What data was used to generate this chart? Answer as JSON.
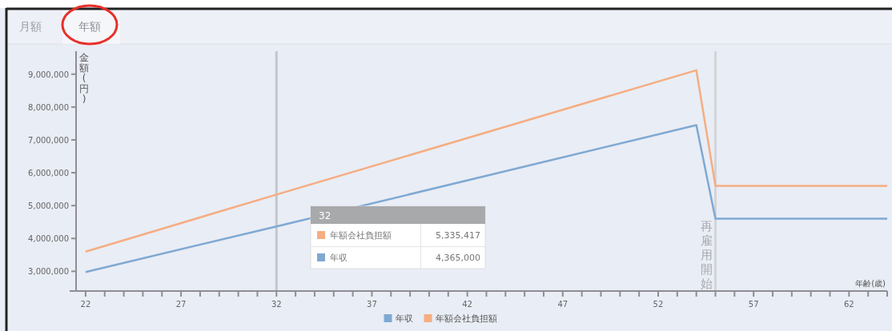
{
  "chart_data": {
    "type": "line",
    "xlabel": "年齢(歳)",
    "ylabel": "金額(円)",
    "xlim": [
      21.5,
      64
    ],
    "ylim": [
      2400000,
      9700000
    ],
    "xticks": [
      22,
      {
        "value": 23,
        "label": null
      },
      {
        "value": 24,
        "label": null
      },
      {
        "value": 25,
        "label": null
      },
      {
        "value": 26,
        "label": null
      },
      27,
      {
        "value": 28,
        "label": null
      },
      {
        "value": 29,
        "label": null
      },
      {
        "value": 30,
        "label": null
      },
      {
        "value": 31,
        "label": null
      },
      32,
      {
        "value": 33,
        "label": null
      },
      {
        "value": 34,
        "label": null
      },
      {
        "value": 35,
        "label": null
      },
      {
        "value": 36,
        "label": null
      },
      37,
      {
        "value": 38,
        "label": null
      },
      {
        "value": 39,
        "label": null
      },
      {
        "value": 40,
        "label": null
      },
      {
        "value": 41,
        "label": null
      },
      42,
      {
        "value": 43,
        "label": null
      },
      {
        "value": 44,
        "label": null
      },
      {
        "value": 45,
        "label": null
      },
      {
        "value": 46,
        "label": null
      },
      47,
      {
        "value": 48,
        "label": null
      },
      {
        "value": 49,
        "label": null
      },
      {
        "value": 50,
        "label": null
      },
      {
        "value": 51,
        "label": null
      },
      52,
      {
        "value": 53,
        "label": null
      },
      {
        "value": 54,
        "label": null
      },
      {
        "value": 55,
        "label": null
      },
      {
        "value": 56,
        "label": null
      },
      57,
      {
        "value": 58,
        "label": null
      },
      {
        "value": 59,
        "label": null
      },
      {
        "value": 60,
        "label": null
      },
      {
        "value": 61,
        "label": null
      },
      62,
      {
        "value": 63,
        "label": null
      },
      {
        "value": 64,
        "label": null
      }
    ],
    "yticks": [
      {
        "value": 3000000,
        "label": "3,000,000"
      },
      {
        "value": 4000000,
        "label": "4,000,000"
      },
      {
        "value": 5000000,
        "label": "5,000,000"
      },
      {
        "value": 6000000,
        "label": "6,000,000"
      },
      {
        "value": 7000000,
        "label": "7,000,000"
      },
      {
        "value": 8000000,
        "label": "8,000,000"
      },
      {
        "value": 9000000,
        "label": "9,000,000"
      }
    ],
    "series": [
      {
        "name": "年収",
        "color": "#7fa9d2",
        "x": [
          22,
          32,
          54,
          55,
          64
        ],
        "values": [
          2980000,
          4365000,
          7450000,
          4600000,
          4600000
        ]
      },
      {
        "name": "年額会社負担額",
        "color": "#f5ad82",
        "x": [
          22,
          32,
          54,
          55,
          64
        ],
        "values": [
          3600000,
          5335417,
          9120000,
          5600000,
          5600000
        ]
      }
    ],
    "ref_lines": [
      {
        "axis": "x",
        "value": 32,
        "color": "#c4c6ca"
      },
      {
        "axis": "x",
        "value": 55,
        "label": "再雇用開始",
        "color": "#d2d4d8"
      }
    ],
    "annotations": [
      "月額",
      "年額",
      "32",
      "5,335,417",
      "4,365,000"
    ],
    "legend": "bottom",
    "grid": false,
    "marker": "none",
    "line_style": "solid"
  }
}
